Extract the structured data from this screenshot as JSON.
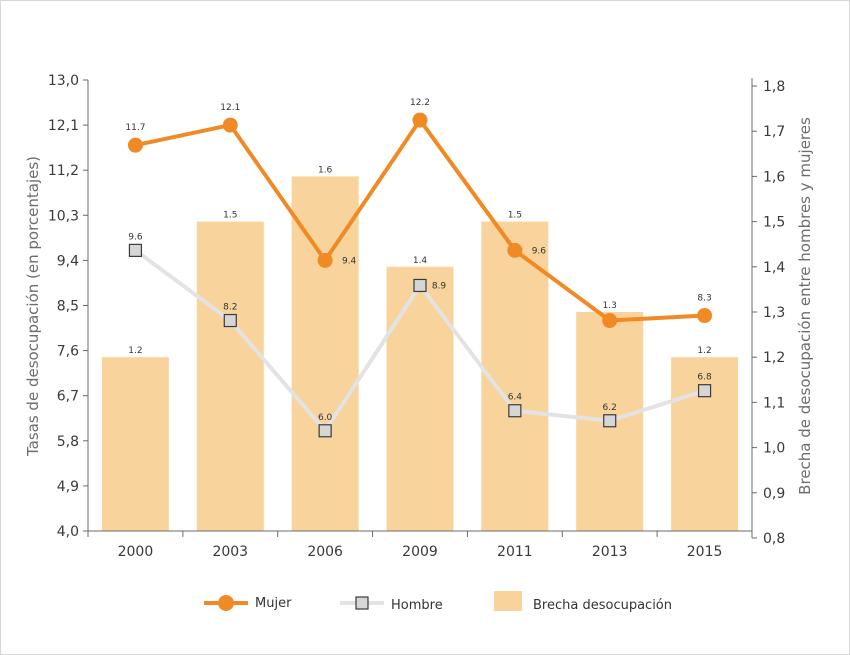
{
  "chart_data": {
    "type": "bar+line",
    "categories": [
      "2000",
      "2003",
      "2006",
      "2009",
      "2011",
      "2013",
      "2015"
    ],
    "left_axis": {
      "label": "Tasas de desocupación (en porcentajes)",
      "ylim": [
        4.0,
        13.0
      ],
      "ticks": [
        "4,0",
        "4,9",
        "5,8",
        "6,7",
        "7,6",
        "8,5",
        "9,4",
        "10,3",
        "11,2",
        "12,1",
        "13,0"
      ]
    },
    "right_axis": {
      "label": "Brecha de desocupación entre hombres y mujeres",
      "ylim": [
        0.8,
        1.8
      ],
      "ticks": [
        "0,8",
        "0,9",
        "1,0",
        "1,1",
        "1,2",
        "1,3",
        "1,4",
        "1,5",
        "1,6",
        "1,7",
        "1,8"
      ]
    },
    "series": [
      {
        "name": "Brecha desocupación",
        "kind": "bar",
        "axis": "right",
        "values": [
          1.2,
          1.5,
          1.6,
          1.4,
          1.5,
          1.3,
          1.2
        ],
        "labels": [
          "1.2",
          "1.5",
          "1.6",
          "1.4",
          "1.5",
          "1.3",
          "1.2"
        ]
      },
      {
        "name": "Mujer",
        "kind": "line",
        "axis": "left",
        "values": [
          11.7,
          12.1,
          9.4,
          12.2,
          9.6,
          8.2,
          8.3
        ],
        "labels": [
          "11.7",
          "12.1",
          "9.4",
          "12.2",
          "9.6",
          "",
          "8.3"
        ]
      },
      {
        "name": "Hombre",
        "kind": "line",
        "axis": "left",
        "values": [
          9.6,
          8.2,
          6.0,
          8.9,
          6.4,
          6.2,
          6.8
        ],
        "labels": [
          "9.6",
          "8.2",
          "6.0",
          "8.9",
          "6.4",
          "6.2",
          "6.8"
        ]
      }
    ],
    "legend": {
      "position": "bottom",
      "items": [
        "Mujer",
        "Hombre",
        "Brecha desocupación"
      ]
    }
  },
  "colors": {
    "mujer": "#f08a24",
    "hombre_line": "#e3e3e3",
    "hombre_marker": "#d6d6d6",
    "bar": "#f8d49c",
    "axis": "#6b6b6b"
  }
}
